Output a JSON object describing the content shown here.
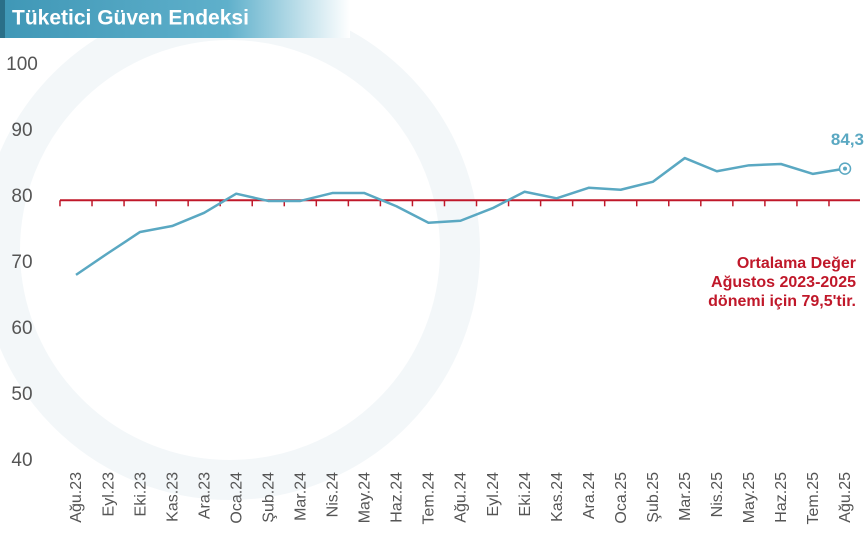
{
  "chart_data": {
    "type": "line",
    "title": "Tüketici Güven Endeksi",
    "categories": [
      "Ağu.23",
      "Eyl.23",
      "Eki.23",
      "Kas.23",
      "Ara.23",
      "Oca.24",
      "Şub.24",
      "Mar.24",
      "Nis.24",
      "May.24",
      "Haz.24",
      "Tem.24",
      "Ağu.24",
      "Eyl.24",
      "Eki.24",
      "Kas.24",
      "Ara.24",
      "Oca.25",
      "Şub.25",
      "Mar.25",
      "Nis.25",
      "May.25",
      "Haz.25",
      "Tem.25",
      "Ağu.25"
    ],
    "series": [
      {
        "name": "Tüketici Güven Endeksi",
        "color": "#5aa8c2",
        "values": [
          68.2,
          71.5,
          74.7,
          75.6,
          77.6,
          80.5,
          79.4,
          79.4,
          80.6,
          80.6,
          78.6,
          76.1,
          76.4,
          78.3,
          80.8,
          79.8,
          81.4,
          81.1,
          82.3,
          85.9,
          83.9,
          84.8,
          85.0,
          83.5,
          84.3
        ],
        "value_labels": [
          null,
          null,
          null,
          null,
          null,
          null,
          null,
          null,
          null,
          null,
          null,
          null,
          null,
          null,
          null,
          null,
          null,
          null,
          null,
          null,
          null,
          null,
          null,
          null,
          "84,3"
        ]
      }
    ],
    "ylim": [
      40,
      100
    ],
    "yticks": [
      40,
      50,
      60,
      70,
      80,
      90,
      100
    ],
    "average": {
      "value": 79.5,
      "color": "#c0182a",
      "label_lines": [
        "Ortalama Değer",
        "Ağustos 2023-2025",
        "dönemi için 79,5'tir."
      ]
    }
  }
}
